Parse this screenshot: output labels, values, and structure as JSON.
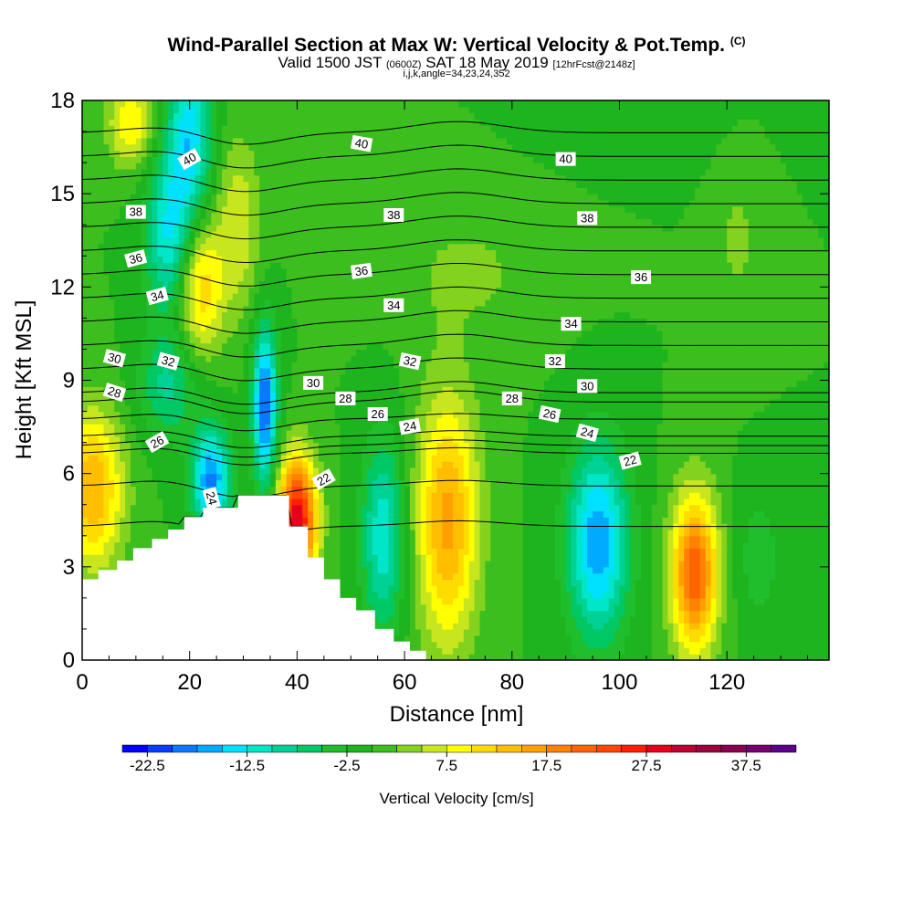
{
  "header": {
    "title": "Wind-Parallel Section at Max W: Vertical Velocity & Pot.Temp.",
    "title_mark": "(C)",
    "valid_a": "Valid 1500 JST",
    "valid_utc": "(0600Z)",
    "valid_b": "SAT 18 May 2019",
    "forecast": "[12hrFcst@2148z]",
    "indices": "i,j,k,angle=34,23,24,352"
  },
  "chart_data": {
    "type": "heatmap",
    "xlabel": "Distance [nm]",
    "ylabel": "Height [Kft MSL]",
    "xlim": [
      0,
      139
    ],
    "ylim": [
      0,
      18
    ],
    "xticks": [
      0,
      20,
      40,
      60,
      80,
      100,
      120
    ],
    "yticks": [
      0,
      3,
      6,
      9,
      12,
      15,
      18
    ],
    "terrain_kft": [
      [
        0,
        2.6
      ],
      [
        3,
        2.6
      ],
      [
        3,
        2.9
      ],
      [
        6.5,
        2.9
      ],
      [
        6.5,
        3.2
      ],
      [
        9.5,
        3.2
      ],
      [
        9.5,
        3.6
      ],
      [
        13,
        3.6
      ],
      [
        13,
        3.9
      ],
      [
        16,
        3.9
      ],
      [
        16,
        4.2
      ],
      [
        19,
        4.2
      ],
      [
        19,
        4.6
      ],
      [
        22.5,
        4.6
      ],
      [
        22.5,
        4.9
      ],
      [
        29,
        4.9
      ],
      [
        29,
        5.3
      ],
      [
        38.5,
        5.3
      ],
      [
        38.5,
        4.3
      ],
      [
        42,
        4.3
      ],
      [
        42,
        3.3
      ],
      [
        45,
        3.3
      ],
      [
        45,
        2.6
      ],
      [
        48,
        2.6
      ],
      [
        48,
        2.0
      ],
      [
        51,
        2.0
      ],
      [
        51,
        1.6
      ],
      [
        54.5,
        1.6
      ],
      [
        54.5,
        1.0
      ],
      [
        58,
        1.0
      ],
      [
        58,
        0.6
      ],
      [
        61,
        0.6
      ],
      [
        61,
        0.3
      ],
      [
        64,
        0.3
      ],
      [
        64,
        0
      ]
    ],
    "vertical_velocity_cm_s": {
      "background": 0,
      "features": [
        {
          "x": 2,
          "z": 5.5,
          "w": 15,
          "sx": 4,
          "sz": 1.8
        },
        {
          "x": 24,
          "z": 5.8,
          "w": -18,
          "sx": 2.5,
          "sz": 1.2
        },
        {
          "x": 34,
          "z": 8.2,
          "w": -20,
          "sx": 1.6,
          "sz": 1.8
        },
        {
          "x": 40,
          "z": 4.5,
          "w": 30,
          "sx": 2.5,
          "sz": 1.4
        },
        {
          "x": 56,
          "z": 4.0,
          "w": -12,
          "sx": 2.8,
          "sz": 2.2
        },
        {
          "x": 68,
          "z": 4.5,
          "w": 16,
          "sx": 4,
          "sz": 2.8
        },
        {
          "x": 96,
          "z": 3.8,
          "w": -17,
          "sx": 4,
          "sz": 2.2
        },
        {
          "x": 114,
          "z": 2.8,
          "w": 22,
          "sx": 3,
          "sz": 1.8
        },
        {
          "x": 126,
          "z": 3.3,
          "w": -4,
          "sx": 3,
          "sz": 1.5
        },
        {
          "x": 20,
          "z": 16.8,
          "w": -14,
          "sx": 3,
          "sz": 2
        },
        {
          "x": 16,
          "z": 13.6,
          "w": -12,
          "sx": 3,
          "sz": 1.8
        },
        {
          "x": 22,
          "z": 12.0,
          "w": 12,
          "sx": 3,
          "sz": 1.6
        },
        {
          "x": 9,
          "z": 17.3,
          "w": 10,
          "sx": 3,
          "sz": 1
        },
        {
          "x": 29,
          "z": 14.0,
          "w": 7,
          "sx": 3,
          "sz": 2
        },
        {
          "x": 16,
          "z": 8.8,
          "w": -8,
          "sx": 4,
          "sz": 1.2
        },
        {
          "x": 72,
          "z": 12.5,
          "w": 3,
          "sx": 10,
          "sz": 1.5
        },
        {
          "x": 105,
          "z": 17.5,
          "w": -2,
          "sx": 10,
          "sz": 1
        },
        {
          "x": 122,
          "z": 13.5,
          "w": 3,
          "sx": 3,
          "sz": 2
        }
      ]
    },
    "potential_temperature_labels": [
      {
        "value": "40",
        "x": 20,
        "z": 16.1,
        "angle": -30
      },
      {
        "value": "40",
        "x": 52,
        "z": 16.6,
        "angle": 10
      },
      {
        "value": "40",
        "x": 90,
        "z": 16.1,
        "angle": 0
      },
      {
        "value": "38",
        "x": 10,
        "z": 14.4,
        "angle": 0
      },
      {
        "value": "38",
        "x": 58,
        "z": 14.3,
        "angle": 0
      },
      {
        "value": "38",
        "x": 94,
        "z": 14.2,
        "angle": 0
      },
      {
        "value": "36",
        "x": 10,
        "z": 12.9,
        "angle": -15
      },
      {
        "value": "36",
        "x": 52,
        "z": 12.5,
        "angle": -8
      },
      {
        "value": "36",
        "x": 104,
        "z": 12.3,
        "angle": 0
      },
      {
        "value": "34",
        "x": 14,
        "z": 11.7,
        "angle": -15
      },
      {
        "value": "34",
        "x": 58,
        "z": 11.4,
        "angle": 0
      },
      {
        "value": "34",
        "x": 91,
        "z": 10.8,
        "angle": 0
      },
      {
        "value": "32",
        "x": 16,
        "z": 9.6,
        "angle": 15
      },
      {
        "value": "32",
        "x": 61,
        "z": 9.6,
        "angle": 12
      },
      {
        "value": "32",
        "x": 88,
        "z": 9.6,
        "angle": 0
      },
      {
        "value": "30",
        "x": 6,
        "z": 9.7,
        "angle": 15
      },
      {
        "value": "30",
        "x": 43,
        "z": 8.9,
        "angle": 0
      },
      {
        "value": "30",
        "x": 94,
        "z": 8.8,
        "angle": 0
      },
      {
        "value": "28",
        "x": 6,
        "z": 8.6,
        "angle": 18
      },
      {
        "value": "28",
        "x": 49,
        "z": 8.4,
        "angle": 0
      },
      {
        "value": "28",
        "x": 80,
        "z": 8.4,
        "angle": 0
      },
      {
        "value": "26",
        "x": 14,
        "z": 7.0,
        "angle": -30
      },
      {
        "value": "26",
        "x": 55,
        "z": 7.9,
        "angle": 0
      },
      {
        "value": "26",
        "x": 87,
        "z": 7.9,
        "angle": 12
      },
      {
        "value": "24",
        "x": 61,
        "z": 7.5,
        "angle": -10
      },
      {
        "value": "24",
        "x": 94,
        "z": 7.3,
        "angle": 15
      },
      {
        "value": "24",
        "x": 24,
        "z": 5.2,
        "angle": 75
      },
      {
        "value": "22",
        "x": 45,
        "z": 5.8,
        "angle": -30
      },
      {
        "value": "22",
        "x": 102,
        "z": 6.4,
        "angle": -15
      }
    ],
    "colorbar": {
      "label": "Vertical Velocity [cm/s]",
      "levels": [
        -25,
        -22.5,
        -20,
        -17.5,
        -15,
        -12.5,
        -10,
        -7.5,
        -5,
        -2.5,
        0,
        2.5,
        5,
        7.5,
        10,
        12.5,
        15,
        17.5,
        20,
        22.5,
        25,
        27.5,
        30,
        32.5,
        35,
        37.5,
        40,
        42.5
      ],
      "ticks": [
        "-22.5",
        "-12.5",
        "-2.5",
        "7.5",
        "17.5",
        "27.5",
        "37.5"
      ],
      "colors": [
        "#0000ff",
        "#0a3cff",
        "#0a78ff",
        "#00aaff",
        "#00e1ff",
        "#00e6c8",
        "#00d296",
        "#00c864",
        "#1ebe2d",
        "#1eb41e",
        "#3cbe1e",
        "#82d21e",
        "#c8e61e",
        "#ffff00",
        "#ffdc00",
        "#ffbe00",
        "#ffa000",
        "#ff8200",
        "#ff6400",
        "#ff4600",
        "#ff1e00",
        "#e6001e",
        "#be0032",
        "#a0003c",
        "#8c0050",
        "#78006e",
        "#5a008c"
      ]
    }
  }
}
